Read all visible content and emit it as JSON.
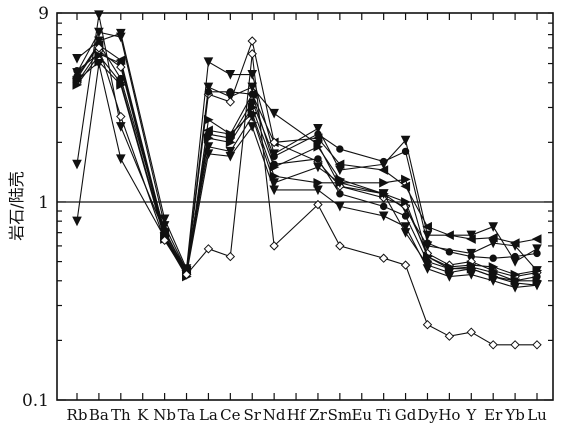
{
  "chart_data": {
    "type": "line",
    "title": "",
    "xlabel": "",
    "ylabel": "岩石/陆壳",
    "y_scale": "log",
    "ylim": [
      0.1,
      9
    ],
    "y_ticks": [
      {
        "value": 9,
        "label": "9"
      },
      {
        "value": 1,
        "label": "1"
      },
      {
        "value": 0.1,
        "label": "0.1"
      }
    ],
    "reference_line": 1,
    "grid": false,
    "legend": "none",
    "categories": [
      "Rb",
      "Ba",
      "Th",
      "K",
      "Nb",
      "Ta",
      "La",
      "Ce",
      "Sr",
      "Nd",
      "Hf",
      "Zr",
      "Sm",
      "Eu",
      "Ti",
      "Gd",
      "Dy",
      "Ho",
      "Y",
      "Er",
      "Yb",
      "Lu"
    ],
    "category_labels": [
      "Rb",
      "Ba",
      "Th",
      "K",
      "Nb",
      "Ta",
      "La",
      "Ce",
      "Sr",
      "Nd",
      "Hf",
      "Zr",
      "Sm",
      "Eu",
      "Ti",
      "Gd",
      "Dy",
      "Ho",
      "Y",
      "Er",
      "Yb",
      "Lu"
    ],
    "series": [
      {
        "marker": "triangle-down",
        "values": [
          5.3,
          6.5,
          7.1,
          null,
          0.82,
          0.46,
          5.1,
          4.4,
          4.4,
          1.75,
          null,
          2.35,
          1.45,
          null,
          1.55,
          2.05,
          0.68,
          null,
          0.68,
          0.75,
          0.5,
          0.58
        ]
      },
      {
        "marker": "triangle-down",
        "values": [
          4.5,
          7.2,
          6.8,
          null,
          0.76,
          0.45,
          3.8,
          3.4,
          3.8,
          2.8,
          null,
          1.95,
          1.2,
          null,
          1.1,
          0.92,
          0.6,
          null,
          0.55,
          0.62,
          0.6,
          0.45
        ]
      },
      {
        "marker": "triangle-left",
        "values": [
          4.2,
          6.2,
          5.2,
          null,
          0.7,
          0.45,
          2.3,
          2.2,
          3.5,
          2.0,
          null,
          2.1,
          1.55,
          null,
          1.45,
          1.2,
          0.75,
          0.68,
          0.65,
          0.66,
          0.62,
          0.65
        ]
      },
      {
        "marker": "circle",
        "values": [
          4.6,
          5.6,
          5.0,
          null,
          0.68,
          0.44,
          2.2,
          2.1,
          3.2,
          1.7,
          null,
          2.2,
          1.85,
          null,
          1.6,
          1.8,
          0.62,
          0.56,
          0.53,
          0.52,
          0.53,
          0.55
        ]
      },
      {
        "marker": "diamond",
        "values": [
          4.0,
          5.8,
          4.8,
          null,
          0.66,
          0.44,
          3.5,
          3.2,
          6.5,
          2.0,
          null,
          1.6,
          1.2,
          null,
          1.05,
          0.95,
          0.55,
          0.48,
          0.5,
          0.45,
          0.42,
          0.44
        ]
      },
      {
        "marker": "circle",
        "values": [
          4.3,
          6.3,
          4.2,
          null,
          0.72,
          0.44,
          3.6,
          3.6,
          3.5,
          1.55,
          null,
          1.65,
          1.1,
          null,
          0.95,
          0.85,
          0.5,
          0.46,
          0.47,
          0.44,
          0.4,
          0.42
        ]
      },
      {
        "marker": "triangle-right",
        "values": [
          3.9,
          5.5,
          4.0,
          null,
          0.67,
          0.43,
          2.1,
          2.0,
          3.0,
          1.5,
          null,
          1.9,
          1.3,
          null,
          1.1,
          1.0,
          0.53,
          0.47,
          0.48,
          0.47,
          0.43,
          0.45
        ]
      },
      {
        "marker": "triangle-right",
        "values": [
          4.1,
          5.1,
          3.9,
          null,
          0.65,
          0.42,
          2.6,
          2.2,
          2.8,
          1.35,
          null,
          1.25,
          1.25,
          null,
          1.25,
          1.3,
          0.53,
          0.46,
          0.46,
          0.42,
          0.4,
          0.4
        ]
      },
      {
        "marker": "triangle-down",
        "values": [
          1.55,
          8.8,
          2.4,
          null,
          0.7,
          0.45,
          1.9,
          1.8,
          2.7,
          1.25,
          null,
          1.5,
          1.25,
          null,
          1.1,
          0.7,
          0.48,
          0.44,
          0.46,
          0.42,
          0.39,
          0.38
        ]
      },
      {
        "marker": "triangle-down",
        "values": [
          0.8,
          5.0,
          1.65,
          null,
          0.66,
          0.43,
          1.75,
          1.7,
          2.4,
          1.15,
          null,
          1.15,
          0.95,
          null,
          0.85,
          0.75,
          0.46,
          0.42,
          0.43,
          0.4,
          0.37,
          0.38
        ]
      },
      {
        "marker": "diamond",
        "values": [
          null,
          6.0,
          2.7,
          null,
          0.64,
          0.43,
          0.58,
          0.53,
          5.6,
          0.6,
          null,
          0.97,
          0.6,
          null,
          0.52,
          0.48,
          0.24,
          0.21,
          0.22,
          0.19,
          0.19,
          0.19
        ]
      }
    ]
  }
}
